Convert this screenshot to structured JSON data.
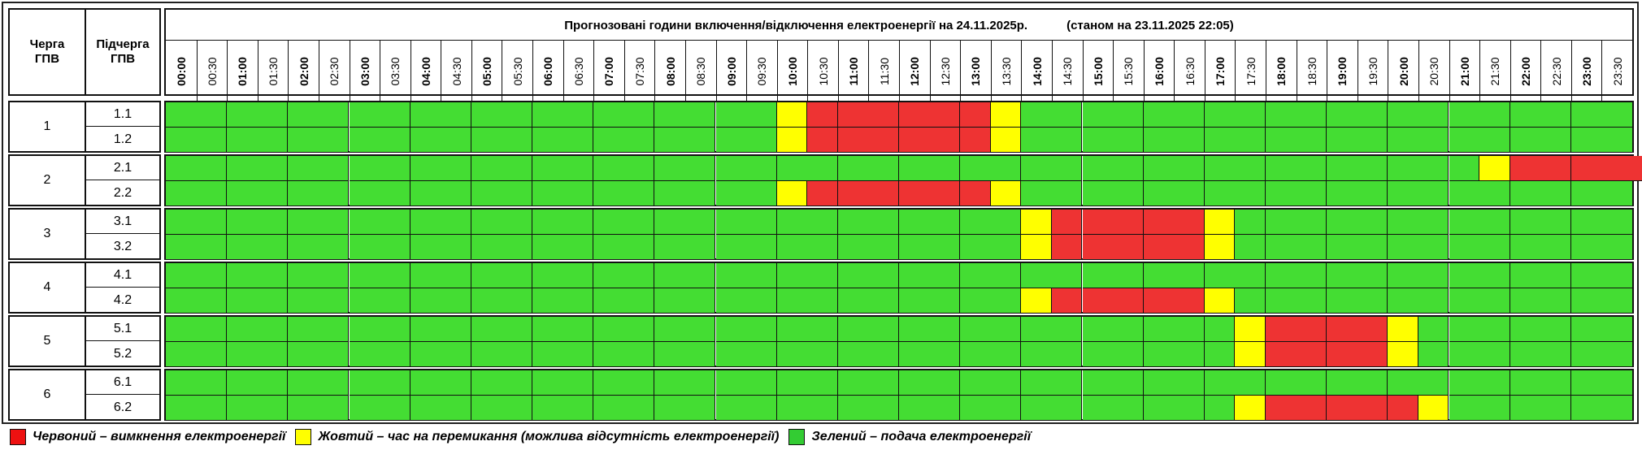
{
  "header": {
    "col_queue": "Черга\nГПВ",
    "col_subqueue": "Підчерга\nГПВ",
    "title": "Прогнозовані години включення/відключення електроенергії на 24.11.2025р.",
    "status": "(станом на 23.11.2025 22:05)"
  },
  "times": [
    "00:00",
    "00:30",
    "01:00",
    "01:30",
    "02:00",
    "02:30",
    "03:00",
    "03:30",
    "04:00",
    "04:30",
    "05:00",
    "05:30",
    "06:00",
    "06:30",
    "07:00",
    "07:30",
    "08:00",
    "08:30",
    "09:00",
    "09:30",
    "10:00",
    "10:30",
    "11:00",
    "11:30",
    "12:00",
    "12:30",
    "13:00",
    "13:30",
    "14:00",
    "14:30",
    "15:00",
    "15:30",
    "16:00",
    "16:30",
    "17:00",
    "17:30",
    "18:00",
    "18:30",
    "19:00",
    "19:30",
    "20:00",
    "20:30",
    "21:00",
    "21:30",
    "22:00",
    "22:30",
    "23:00",
    "23:30"
  ],
  "colors": {
    "R": "#ee3333",
    "Y": "#ffff00",
    "G": "#44dd33"
  },
  "queues": [
    {
      "label": "1",
      "subs": [
        {
          "label": "1.1",
          "slots": "GGGGGGGGGGGGGGGGGGGGYRRRRRRYGGGGGGGGGGGGGGGGGGGG"
        },
        {
          "label": "1.2",
          "slots": "GGGGGGGGGGGGGGGGGGGGYRRRRRRYGGGGGGGGGGGGGGGGGGGG"
        }
      ]
    },
    {
      "label": "2",
      "subs": [
        {
          "label": "2.1",
          "slots": "GGGGGGGGGGGGGGGGGGGGGGGGGGGGGGGGGGGGGGGGGGGYRRRRR"
        },
        {
          "label": "2.2",
          "slots": "GGGGGGGGGGGGGGGGGGGGYRRRRRRYGGGGGGGGGGGGGGGGGGGG"
        }
      ]
    },
    {
      "label": "3",
      "subs": [
        {
          "label": "3.1",
          "slots": "GGGGGGGGGGGGGGGGGGGGGGGGGGGGYRRRRRYGGGGGGGGGGGGG"
        },
        {
          "label": "3.2",
          "slots": "GGGGGGGGGGGGGGGGGGGGGGGGGGGGYRRRRRYGGGGGGGGGGGGG"
        }
      ]
    },
    {
      "label": "4",
      "subs": [
        {
          "label": "4.1",
          "slots": "GGGGGGGGGGGGGGGGGGGGGGGGGGGGGGGGGGGGGGGGGGGGGGGG"
        },
        {
          "label": "4.2",
          "slots": "GGGGGGGGGGGGGGGGGGGGGGGGGGGGYRRRRRYGGGGGGGGGGGGG"
        }
      ]
    },
    {
      "label": "5",
      "subs": [
        {
          "label": "5.1",
          "slots": "GGGGGGGGGGGGGGGGGGGGGGGGGGGGGGGGGGGYRRRRYGGGGGGG"
        },
        {
          "label": "5.2",
          "slots": "GGGGGGGGGGGGGGGGGGGGGGGGGGGGGGGGGGGYRRRRYGGGGGGG"
        }
      ]
    },
    {
      "label": "6",
      "subs": [
        {
          "label": "6.1",
          "slots": "GGGGGGGGGGGGGGGGGGGGGGGGGGGGGGGGGGGGGGGGGGGGGGGG"
        },
        {
          "label": "6.2",
          "slots": "GGGGGGGGGGGGGGGGGGGGGGGGGGGGGGGGGGGYRRRRRYGGGGGG"
        }
      ]
    }
  ],
  "legend": [
    {
      "color": "#ee1111",
      "text": "Червоний – вимкнення електроенергії"
    },
    {
      "color": "#ffff00",
      "text": "Жовтий – час на перемикання (можлива відсутність електроенергії)"
    },
    {
      "color": "#33cc33",
      "text": "Зелений – подача електроенергії"
    }
  ]
}
